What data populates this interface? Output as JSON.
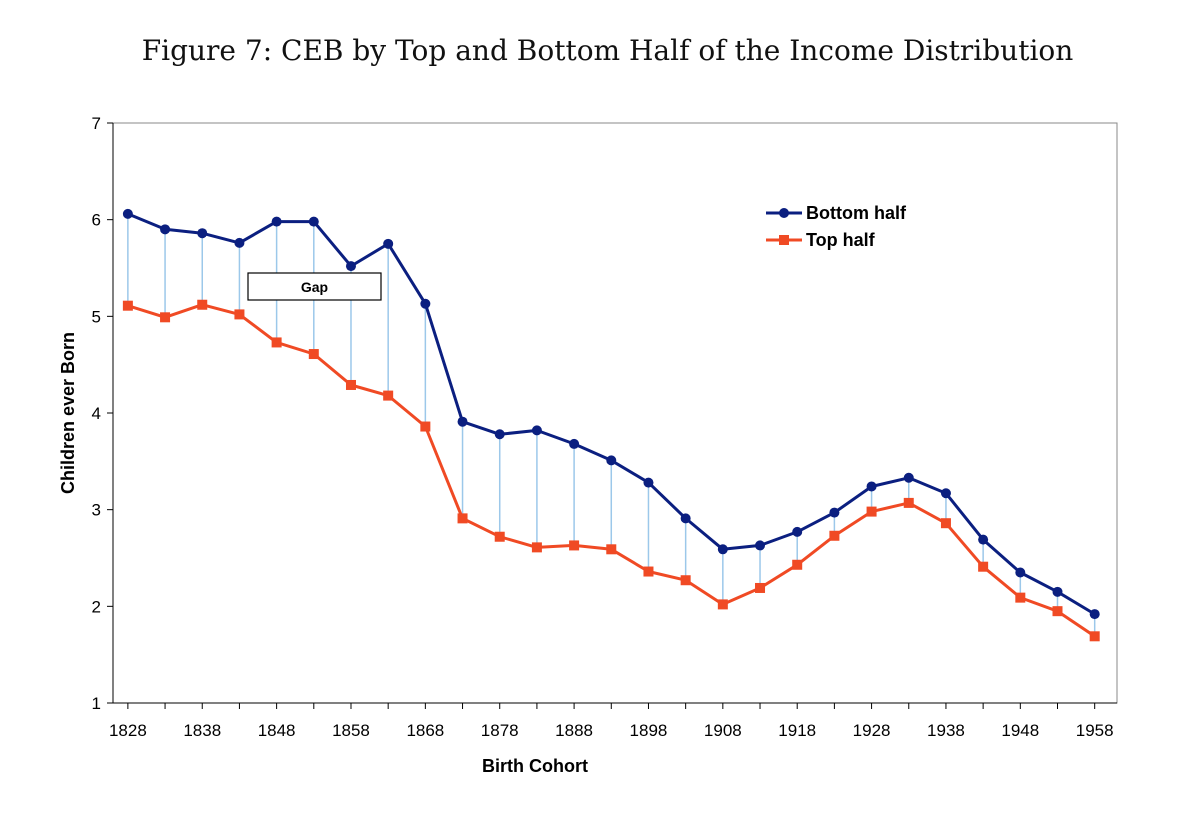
{
  "figure_title": "Figure 7: CEB by Top and Bottom Half of the Income Distribution",
  "chart_data": {
    "type": "line",
    "title": "",
    "xlabel": "Birth Cohort",
    "ylabel": "Children ever Born",
    "ylim": [
      1,
      7
    ],
    "xlim": [
      1826,
      1961
    ],
    "y_ticks": [
      1,
      2,
      3,
      4,
      5,
      6,
      7
    ],
    "x_ticks": [
      1828,
      1838,
      1848,
      1858,
      1868,
      1878,
      1888,
      1898,
      1908,
      1918,
      1928,
      1938,
      1948,
      1958
    ],
    "grid": false,
    "legend_position": "top-right",
    "annotation": "Gap",
    "x": [
      1828,
      1833,
      1838,
      1843,
      1848,
      1853,
      1858,
      1863,
      1868,
      1873,
      1878,
      1883,
      1888,
      1893,
      1898,
      1903,
      1908,
      1913,
      1918,
      1923,
      1928,
      1933,
      1938,
      1943,
      1948,
      1953,
      1958
    ],
    "series": [
      {
        "name": "Bottom half",
        "color": "#0b1f80",
        "marker": "circle",
        "values": [
          6.06,
          5.9,
          5.86,
          5.76,
          5.98,
          5.98,
          5.52,
          5.75,
          5.13,
          3.91,
          3.78,
          3.82,
          3.68,
          3.51,
          3.28,
          2.91,
          2.59,
          2.63,
          2.77,
          2.97,
          3.24,
          3.33,
          3.17,
          2.69,
          2.35,
          2.15,
          1.92
        ]
      },
      {
        "name": "Top half",
        "color": "#f04a24",
        "marker": "square",
        "values": [
          5.11,
          4.99,
          5.12,
          5.02,
          4.73,
          4.61,
          4.29,
          4.18,
          3.86,
          2.91,
          2.72,
          2.61,
          2.63,
          2.59,
          2.36,
          2.27,
          2.02,
          2.19,
          2.43,
          2.73,
          2.98,
          3.07,
          2.86,
          2.41,
          2.09,
          1.95,
          1.69
        ]
      }
    ],
    "gap_line_color": "#9cc8ea"
  }
}
